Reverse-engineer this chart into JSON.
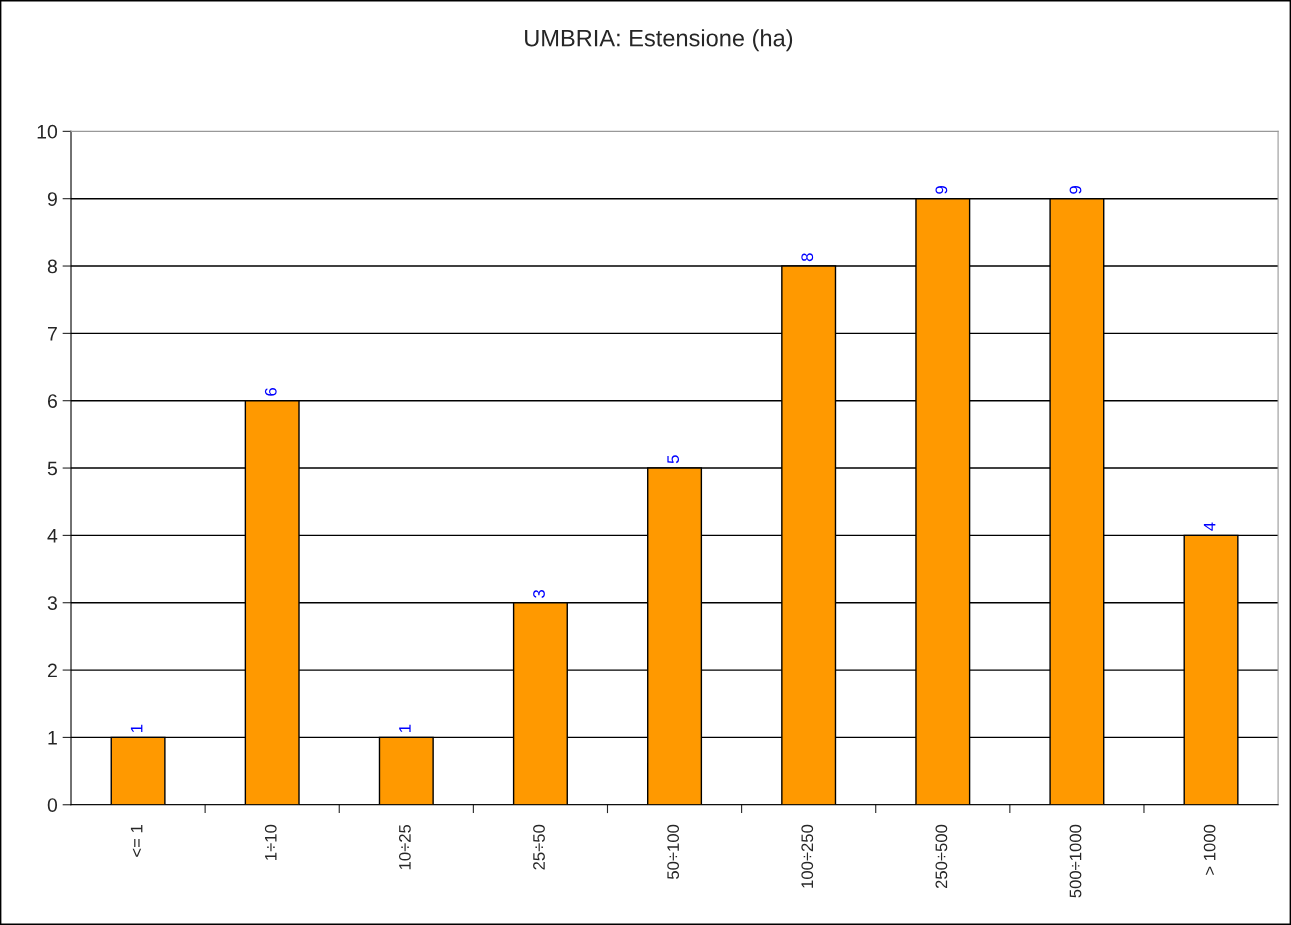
{
  "chart_data": {
    "type": "bar",
    "title": "UMBRIA: Estensione (ha)",
    "categories": [
      "<= 1",
      "1÷10",
      "10÷25",
      "25÷50",
      "50÷100",
      "100÷250",
      "250÷500",
      "500÷1000",
      "> 1000"
    ],
    "values": [
      1,
      6,
      1,
      3,
      5,
      8,
      9,
      9,
      4
    ],
    "color": "#ff9900",
    "ylim": [
      0,
      10
    ],
    "yticks": [
      0,
      1,
      2,
      3,
      4,
      5,
      6,
      7,
      8,
      9,
      10
    ],
    "grid": "y",
    "data_labels": true,
    "legend": false
  }
}
